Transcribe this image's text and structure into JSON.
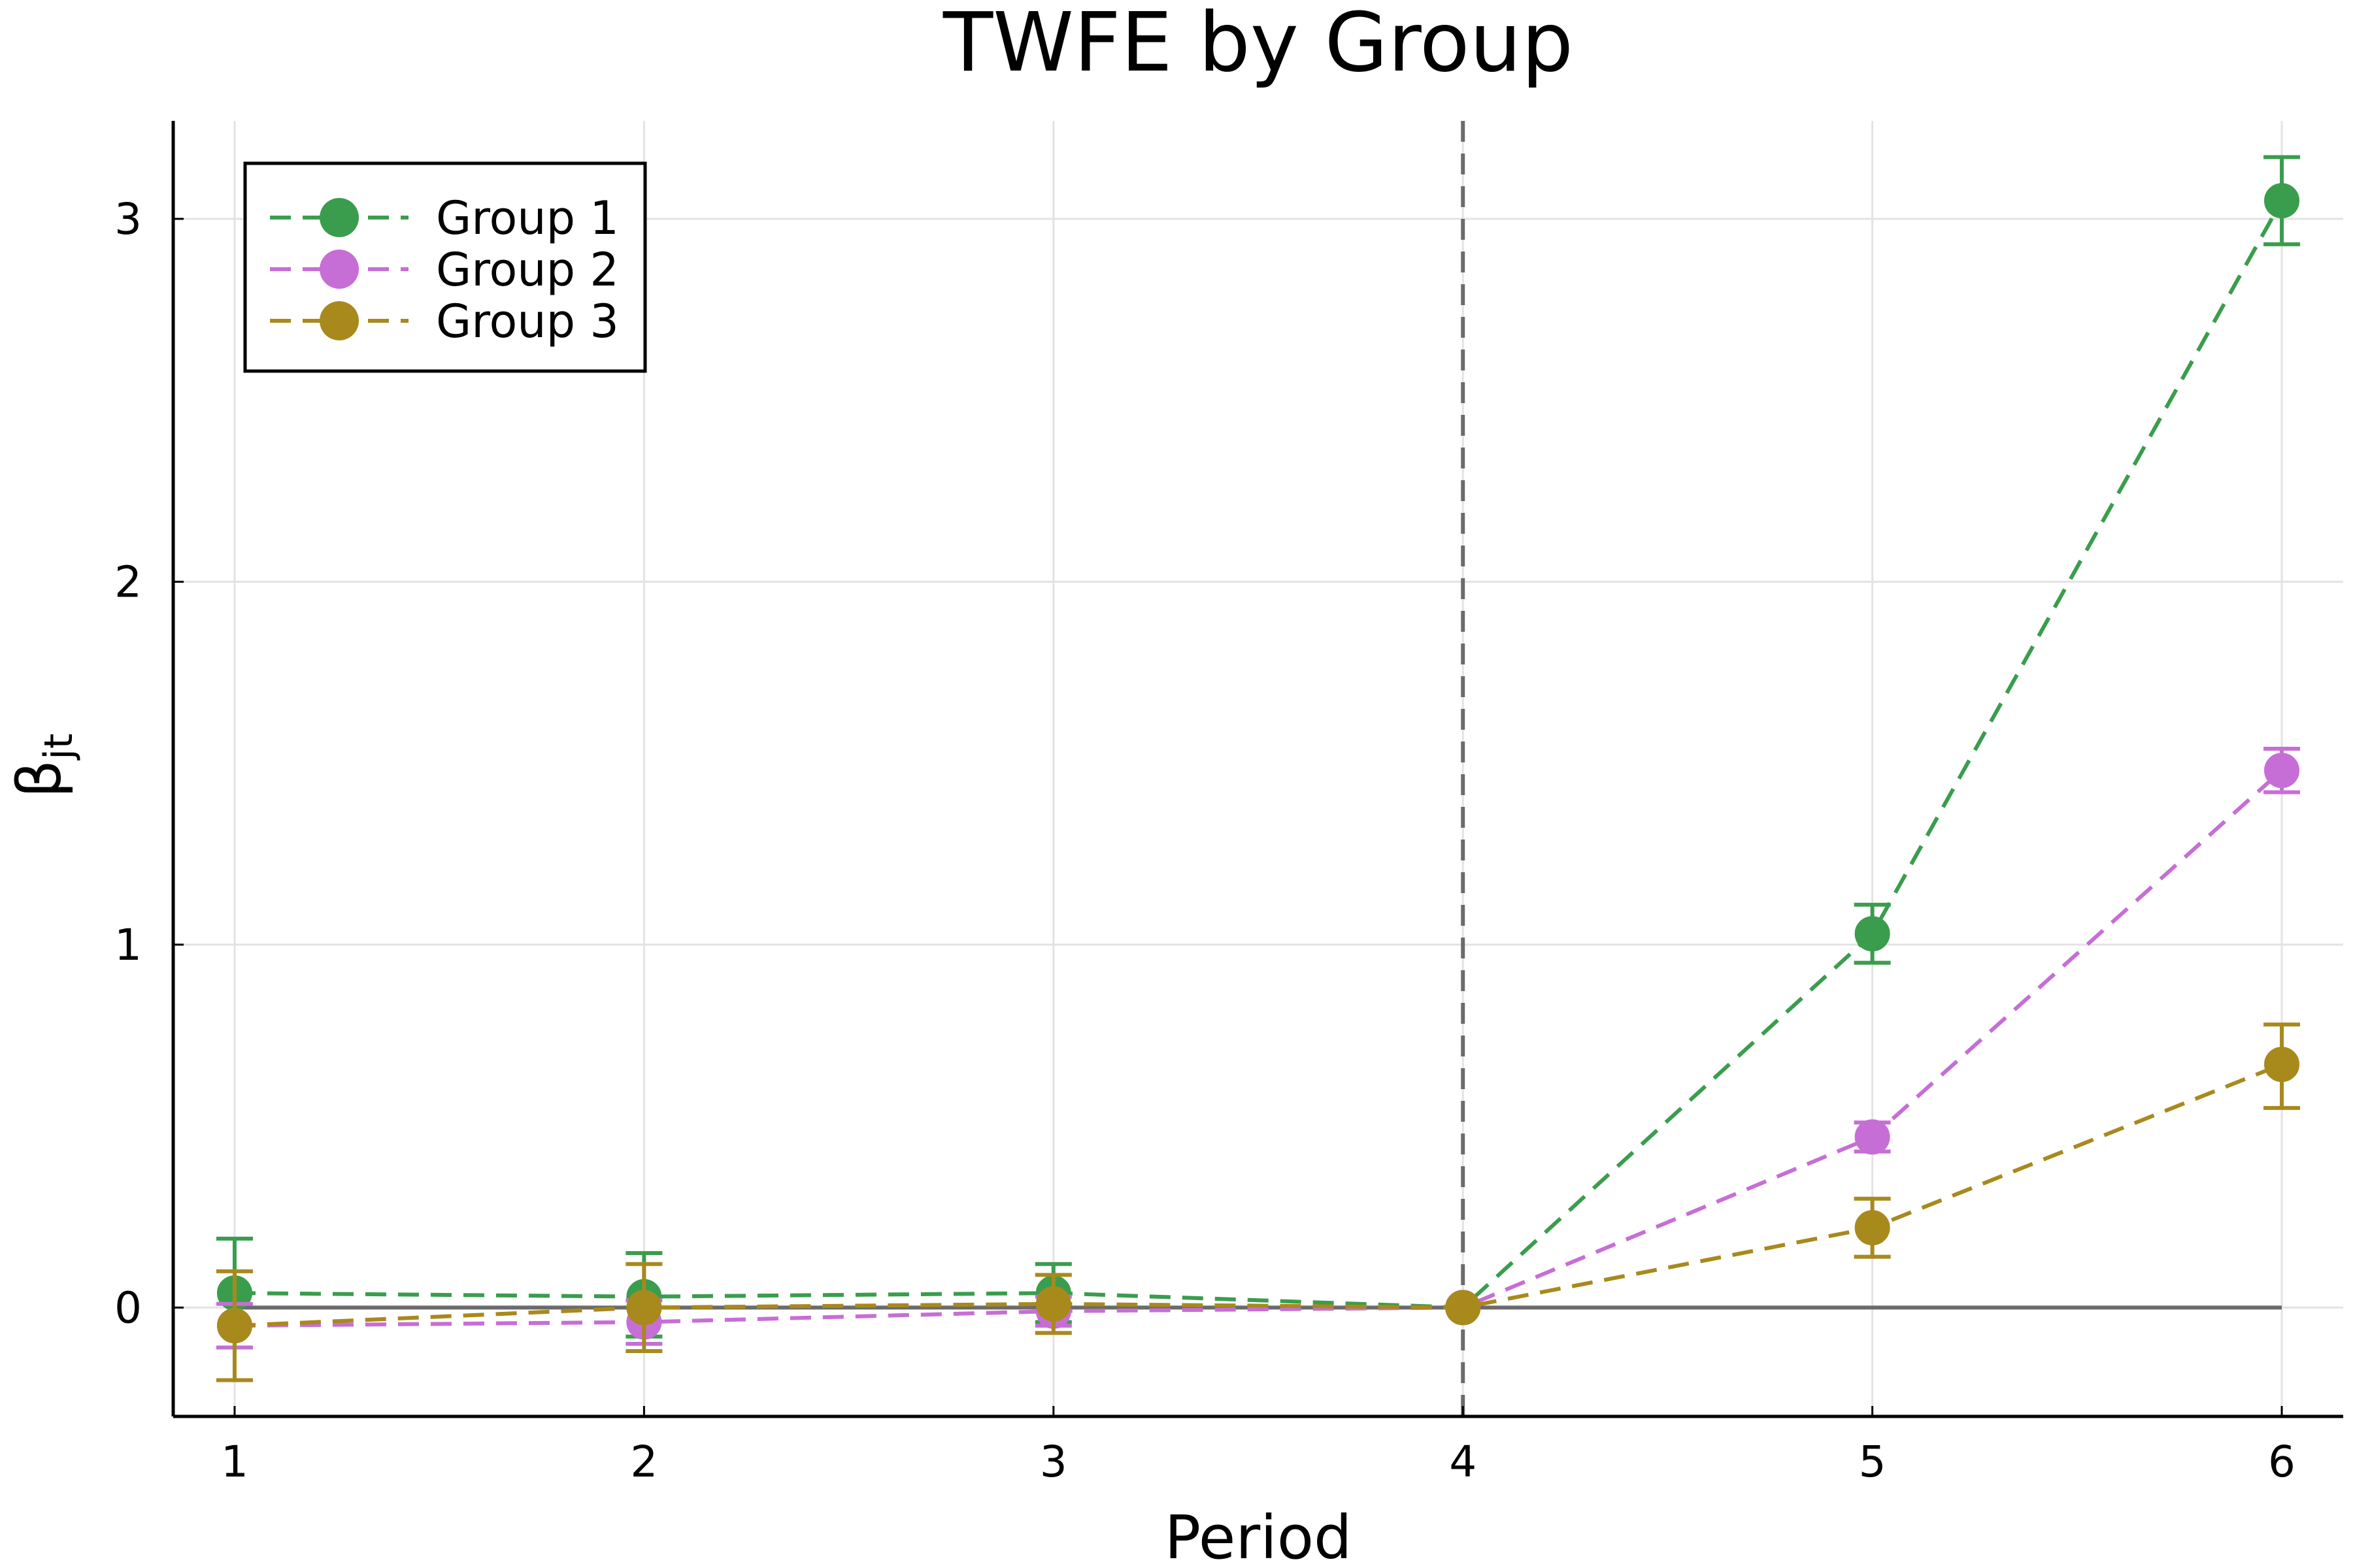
{
  "chart_data": {
    "type": "scatter",
    "title": "TWFE by Group",
    "xlabel": "Period",
    "ylabel_main": "β",
    "ylabel_sub": "jt",
    "x": [
      1,
      2,
      3,
      4,
      5,
      6
    ],
    "xticks": [
      "1",
      "2",
      "3",
      "4",
      "5",
      "6"
    ],
    "yticks": [
      "0",
      "1",
      "2",
      "3"
    ],
    "xlim": [
      0.85,
      6.15
    ],
    "ylim": [
      -0.3,
      3.27
    ],
    "grid": true,
    "legend_position": "top-left",
    "reference_lines": {
      "horizontal_y": 0,
      "horizontal_x_range": [
        1,
        6
      ],
      "vertical_x": 4,
      "color": "#6b6b6b"
    },
    "series": [
      {
        "name": "Group 1",
        "color": "#3a9d4d",
        "values": [
          0.04,
          0.03,
          0.04,
          0.0,
          1.03,
          3.05
        ],
        "err_low": [
          -0.11,
          -0.08,
          -0.04,
          0.0,
          0.95,
          2.93
        ],
        "err_high": [
          0.19,
          0.15,
          0.12,
          0.0,
          1.11,
          3.17
        ]
      },
      {
        "name": "Group 2",
        "color": "#c66ed6",
        "values": [
          -0.05,
          -0.04,
          -0.01,
          0.0,
          0.47,
          1.48
        ],
        "err_low": [
          -0.11,
          -0.1,
          -0.05,
          0.0,
          0.43,
          1.42
        ],
        "err_high": [
          0.01,
          0.02,
          0.03,
          0.0,
          0.51,
          1.54
        ]
      },
      {
        "name": "Group 3",
        "color": "#a8891c",
        "values": [
          -0.05,
          0.0,
          0.01,
          0.0,
          0.22,
          0.67
        ],
        "err_low": [
          -0.2,
          -0.12,
          -0.07,
          0.0,
          0.14,
          0.55
        ],
        "err_high": [
          0.1,
          0.12,
          0.09,
          0.0,
          0.3,
          0.78
        ]
      }
    ]
  }
}
